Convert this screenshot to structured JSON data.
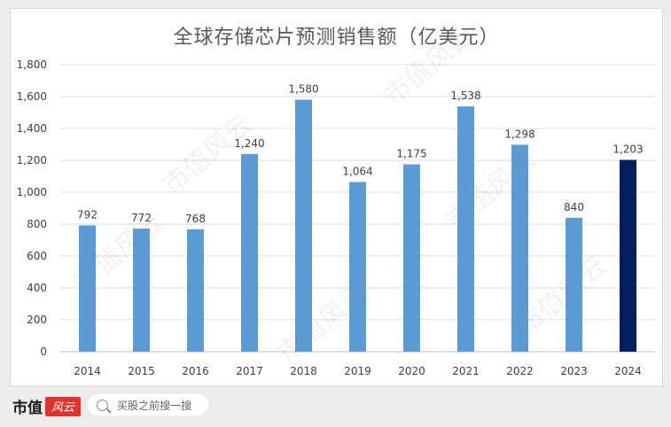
{
  "chart_data": {
    "type": "bar",
    "title": "全球存储芯片预测销售额（亿美元）",
    "categories": [
      "2014",
      "2015",
      "2016",
      "2017",
      "2018",
      "2019",
      "2020",
      "2021",
      "2022",
      "2023",
      "2024"
    ],
    "values": [
      792,
      772,
      768,
      1240,
      1580,
      1064,
      1175,
      1538,
      1298,
      840,
      1203
    ],
    "value_labels": [
      "792",
      "772",
      "768",
      "1,240",
      "1,580",
      "1,064",
      "1,175",
      "1,538",
      "1,298",
      "840",
      "1,203"
    ],
    "ylim": [
      0,
      1800
    ],
    "yticks": [
      0,
      200,
      400,
      600,
      800,
      1000,
      1200,
      1400,
      1600,
      1800
    ],
    "ytick_labels": [
      "0",
      "200",
      "400",
      "600",
      "800",
      "1,000",
      "1,200",
      "1,400",
      "1,600",
      "1,800"
    ],
    "grid": true,
    "colors": {
      "bar": "#5b9bd5",
      "highlight": "#002060",
      "grid": "#d9d9d9",
      "text": "#404040"
    },
    "highlight_category": "2024"
  },
  "footer": {
    "brand": "市值",
    "brand_logo": "风云",
    "search_placeholder": "买股之前搜一搜"
  },
  "watermark": "市值风云"
}
